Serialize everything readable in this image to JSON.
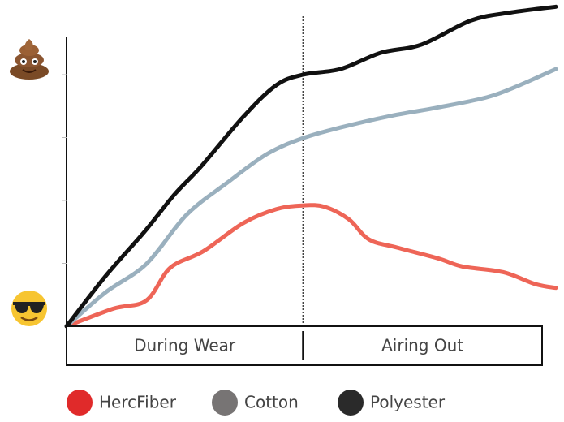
{
  "chart_data": {
    "type": "line",
    "xlim": [
      0,
      100
    ],
    "ylim": [
      0,
      5.1
    ],
    "yticks": [
      1,
      2,
      3,
      4
    ],
    "phases": [
      "During Wear",
      "Airing Out"
    ],
    "phase_boundary": 48.3,
    "series": [
      {
        "name": "HercFiber",
        "color": "#ee6557",
        "legend_color": "#e02a2a",
        "x": [
          0,
          9.6,
          16.3,
          21.2,
          27.9,
          36.1,
          42.8,
          48.3,
          52.7,
          57.7,
          61.8,
          67.6,
          75.9,
          80.9,
          89.2,
          95.8,
          100
        ],
        "values": [
          0,
          0.28,
          0.41,
          0.93,
          1.19,
          1.64,
          1.86,
          1.92,
          1.9,
          1.7,
          1.38,
          1.25,
          1.08,
          0.95,
          0.86,
          0.67,
          0.61
        ]
      },
      {
        "name": "Cotton",
        "color": "#9ab0be",
        "legend_color": "#777474",
        "x": [
          0,
          8,
          16.3,
          24.5,
          32.8,
          41,
          48.3,
          56,
          66,
          76,
          85.9,
          92.5,
          100
        ],
        "values": [
          0,
          0.54,
          0.99,
          1.77,
          2.28,
          2.74,
          2.99,
          3.16,
          3.34,
          3.48,
          3.64,
          3.83,
          4.09
        ]
      },
      {
        "name": "Polyester",
        "color": "#111111",
        "legend_color": "#2a2a2a",
        "x": [
          0,
          8,
          16,
          22,
          27.6,
          36,
          42.8,
          48.3,
          56,
          64.3,
          72.6,
          82.6,
          90.9,
          100
        ],
        "values": [
          0,
          0.8,
          1.51,
          2.09,
          2.55,
          3.32,
          3.83,
          4.0,
          4.09,
          4.35,
          4.48,
          4.86,
          4.99,
          5.08
        ]
      }
    ]
  }
}
